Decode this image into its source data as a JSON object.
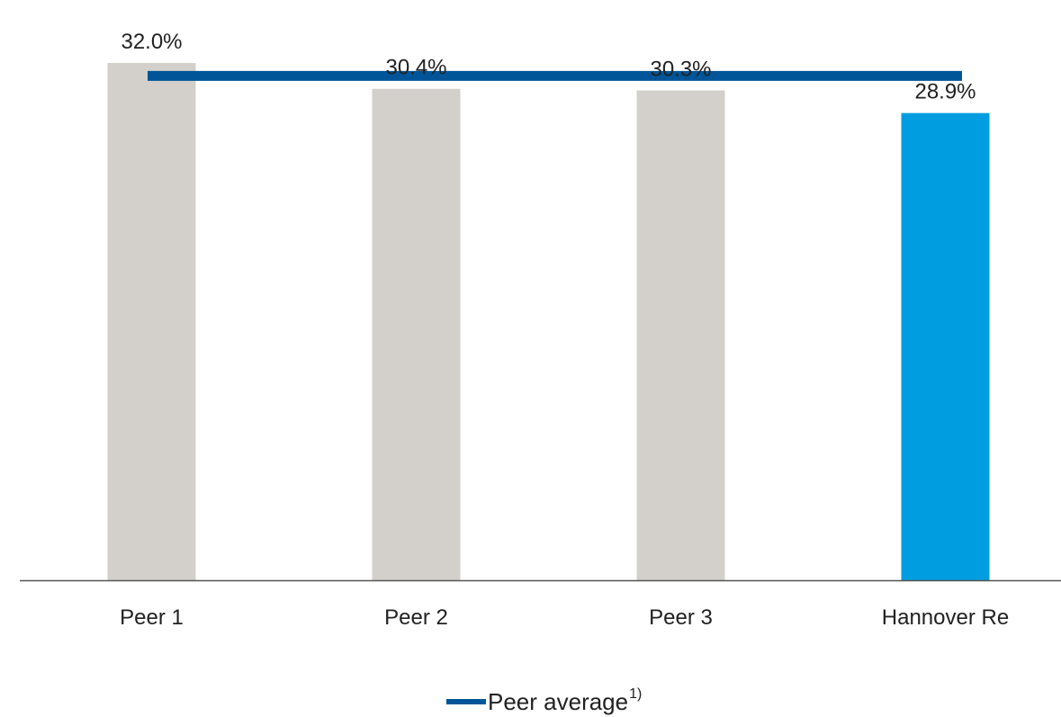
{
  "chart_data": {
    "type": "bar",
    "categories": [
      "Peer 1",
      "Peer 2",
      "Peer 3",
      "Hannover Re"
    ],
    "values": [
      32.0,
      30.4,
      30.3,
      28.9
    ],
    "value_labels": [
      "32.0%",
      "30.4%",
      "30.3%",
      "28.9%"
    ],
    "bar_colors": [
      "#d3d0cb",
      "#d3d0cb",
      "#d3d0cb",
      "#009ee0"
    ],
    "ylim": [
      0,
      33
    ],
    "grid": false,
    "reference_line": {
      "value": 31.2,
      "color": "#005599",
      "legend_label": "Peer average",
      "legend_footnote": "1)"
    },
    "legend_position": "bottom-center",
    "axis_color": "#555555"
  }
}
